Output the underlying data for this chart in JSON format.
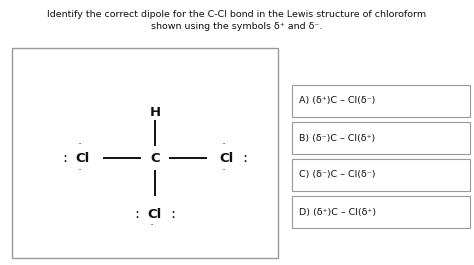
{
  "title_line1": "Identify the correct dipole for the C-Cl bond in the Lewis structure of chloroform",
  "title_line2": "shown using the symbols δ⁺ and δ⁻.",
  "bg_color": "#ffffff",
  "text_color": "#111111",
  "options": [
    "A) (δ⁺)C – Cl(δ⁻)",
    "B) (δ⁻)C – Cl(δ⁺)",
    "C) (δ⁻)C – Cl(δ⁻)",
    "D) (δ⁺)C – Cl(δ⁺)"
  ],
  "figure_width": 4.74,
  "figure_height": 2.65,
  "dpi": 100
}
